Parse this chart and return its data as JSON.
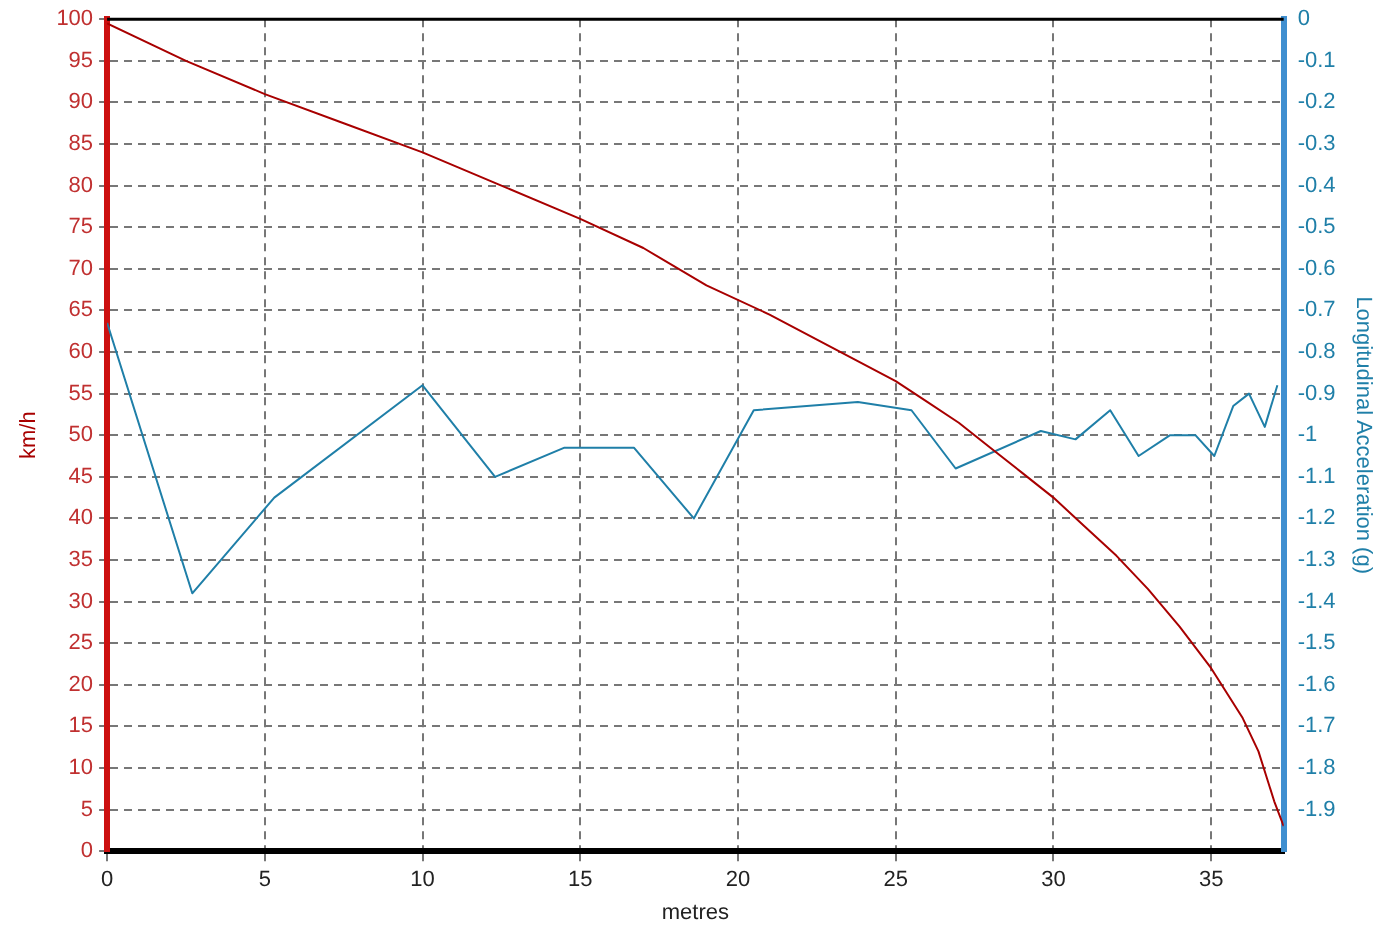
{
  "chart_data": {
    "type": "line",
    "xlabel": "metres",
    "ylabel": "km/h",
    "y2label": "Longitudinal Acceleration (g)",
    "xlim": [
      0,
      37.3
    ],
    "xticks": [
      0,
      5,
      10,
      15,
      20,
      25,
      30,
      35
    ],
    "ylim": [
      0,
      100
    ],
    "yticks": [
      0,
      5,
      10,
      15,
      20,
      25,
      30,
      35,
      40,
      45,
      50,
      55,
      60,
      65,
      70,
      75,
      80,
      85,
      90,
      95,
      100
    ],
    "y2lim": [
      -2,
      0
    ],
    "y2ticks": [
      -1.9,
      -1.8,
      -1.7,
      -1.6,
      -1.5,
      -1.4,
      -1.3,
      -1.2,
      -1.1,
      -1,
      -0.9,
      -0.8,
      -0.7,
      -0.6,
      -0.5,
      -0.4,
      -0.3,
      -0.2,
      -0.1,
      0
    ],
    "grid": true,
    "legend": false,
    "marker": "none",
    "line_style": "solid",
    "series": [
      {
        "color": "#a80000",
        "x": [
          0,
          2.5,
          5,
          7.5,
          10,
          12.5,
          15,
          17,
          19,
          21,
          23,
          25,
          26,
          27,
          28,
          29,
          30,
          31,
          32,
          33,
          34,
          35,
          36,
          36.5,
          37,
          37.3
        ],
        "values": [
          99.5,
          95,
          91,
          87.5,
          84,
          80,
          76,
          72.5,
          68,
          64.5,
          60.5,
          56.5,
          54,
          51.5,
          48.5,
          45.5,
          42.5,
          39,
          35.5,
          31.5,
          27,
          22,
          16,
          12,
          6,
          3
        ]
      },
      {
        "color": "#1f7fa8",
        "axis": "y2",
        "x": [
          0,
          2.7,
          5.3,
          10,
          12.3,
          14.5,
          16.7,
          18.6,
          20.5,
          23.8,
          25.5,
          26.9,
          29.6,
          30.7,
          31.8,
          32.7,
          33.7,
          34.5,
          35.1,
          35.7,
          36.2,
          36.7,
          37.1
        ],
        "values": [
          -0.73,
          -1.38,
          -1.15,
          -0.88,
          -1.1,
          -1.03,
          -1.03,
          -1.2,
          -0.94,
          -0.92,
          -0.94,
          -1.08,
          -0.99,
          -1.01,
          -0.94,
          -1.05,
          -1,
          -1,
          -1.05,
          -0.93,
          -0.9,
          -0.98,
          -0.88
        ]
      }
    ]
  }
}
